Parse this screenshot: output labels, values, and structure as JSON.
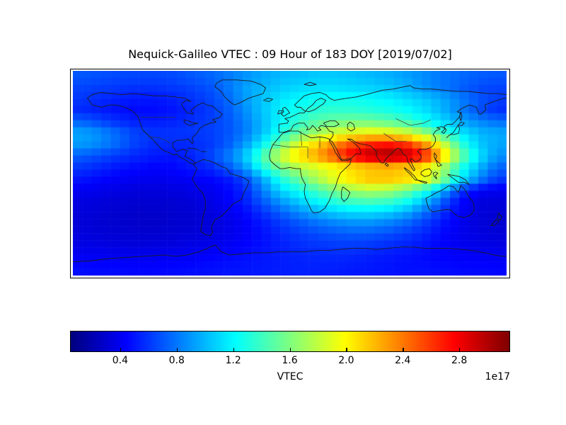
{
  "title": "Nequick-Galileo VTEC : 09 Hour of 183 DOY [2019/07/02]",
  "colorbar": {
    "label": "VTEC",
    "offset_text": "1e17",
    "ticks": [
      "0.4",
      "0.8",
      "1.2",
      "1.6",
      "2.0",
      "2.4",
      "2.8"
    ],
    "tick_values": [
      0.4,
      0.8,
      1.2,
      1.6,
      2.0,
      2.4,
      2.8
    ],
    "vmin": 0.05,
    "vmax": 3.15,
    "colormap": "jet",
    "orientation": "horizontal"
  },
  "chart_data": {
    "type": "heatmap",
    "title": "Nequick-Galileo VTEC : 09 Hour of 183 DOY [2019/07/02]",
    "colorbar_label": "VTEC",
    "scale_factor": "1e17",
    "colormap": "jet",
    "vmin": 0.05,
    "vmax": 3.15,
    "lon_range": [
      -180,
      180
    ],
    "lat_range": [
      -90,
      90
    ],
    "overlay": "world-coastlines-and-borders",
    "lon_centers": [
      -172.5,
      -157.5,
      -142.5,
      -127.5,
      -112.5,
      -97.5,
      -82.5,
      -67.5,
      -52.5,
      -37.5,
      -22.5,
      -7.5,
      7.5,
      22.5,
      37.5,
      52.5,
      67.5,
      82.5,
      97.5,
      112.5,
      127.5,
      142.5,
      157.5,
      172.5
    ],
    "lat_centers": [
      85,
      75,
      65,
      55,
      45,
      35,
      25,
      15,
      5,
      -5,
      -15,
      -25,
      -35,
      -45,
      -55,
      -65,
      -75,
      -85
    ],
    "values_unit": "1e17",
    "values": [
      [
        0.7,
        0.68,
        0.66,
        0.65,
        0.65,
        0.66,
        0.7,
        0.74,
        0.8,
        0.88,
        0.95,
        1.0,
        1.02,
        1.05,
        1.05,
        1.03,
        1.0,
        0.97,
        0.92,
        0.86,
        0.8,
        0.76,
        0.72,
        0.7
      ],
      [
        0.64,
        0.62,
        0.6,
        0.58,
        0.58,
        0.6,
        0.63,
        0.68,
        0.78,
        0.92,
        1.0,
        1.06,
        1.1,
        1.12,
        1.12,
        1.1,
        1.08,
        1.04,
        0.98,
        0.88,
        0.8,
        0.72,
        0.66,
        0.64
      ],
      [
        0.6,
        0.56,
        0.53,
        0.5,
        0.5,
        0.53,
        0.58,
        0.64,
        0.74,
        0.9,
        1.04,
        1.14,
        1.2,
        1.24,
        1.26,
        1.25,
        1.22,
        1.18,
        1.12,
        1.05,
        0.95,
        0.82,
        0.7,
        0.62
      ],
      [
        0.56,
        0.52,
        0.48,
        0.46,
        0.46,
        0.49,
        0.54,
        0.6,
        0.7,
        0.86,
        1.04,
        1.18,
        1.28,
        1.34,
        1.36,
        1.35,
        1.32,
        1.28,
        1.22,
        1.12,
        0.98,
        0.82,
        0.68,
        0.58
      ],
      [
        0.74,
        0.66,
        0.58,
        0.53,
        0.52,
        0.54,
        0.58,
        0.62,
        0.68,
        0.82,
        1.0,
        1.2,
        1.36,
        1.48,
        1.55,
        1.58,
        1.56,
        1.5,
        1.4,
        1.26,
        1.1,
        0.95,
        0.85,
        0.78
      ],
      [
        0.95,
        0.88,
        0.76,
        0.64,
        0.6,
        0.6,
        0.6,
        0.62,
        0.68,
        0.8,
        1.02,
        1.28,
        1.52,
        1.72,
        1.86,
        1.95,
        2.0,
        1.98,
        1.88,
        1.68,
        1.4,
        1.15,
        1.0,
        0.96
      ],
      [
        0.9,
        0.84,
        0.74,
        0.62,
        0.56,
        0.55,
        0.56,
        0.6,
        0.7,
        0.9,
        1.2,
        1.58,
        1.9,
        2.12,
        2.34,
        2.55,
        2.68,
        2.72,
        2.62,
        2.32,
        1.85,
        1.35,
        1.05,
        0.94
      ],
      [
        0.72,
        0.66,
        0.6,
        0.55,
        0.51,
        0.5,
        0.54,
        0.64,
        0.8,
        1.05,
        1.45,
        1.85,
        2.1,
        2.3,
        2.56,
        2.86,
        3.05,
        3.1,
        3.02,
        2.74,
        2.15,
        1.55,
        1.15,
        0.88
      ],
      [
        0.6,
        0.55,
        0.5,
        0.46,
        0.44,
        0.45,
        0.5,
        0.55,
        0.68,
        0.9,
        1.28,
        1.58,
        1.76,
        1.86,
        1.96,
        2.06,
        2.12,
        2.15,
        2.1,
        1.98,
        1.68,
        1.28,
        0.98,
        0.74
      ],
      [
        0.5,
        0.46,
        0.42,
        0.4,
        0.39,
        0.4,
        0.42,
        0.45,
        0.5,
        0.65,
        0.95,
        1.3,
        1.52,
        1.74,
        1.94,
        2.1,
        2.2,
        2.2,
        2.14,
        2.0,
        1.62,
        1.16,
        0.85,
        0.62
      ],
      [
        0.4,
        0.38,
        0.35,
        0.33,
        0.33,
        0.34,
        0.36,
        0.38,
        0.44,
        0.55,
        0.82,
        1.1,
        1.26,
        1.42,
        1.58,
        1.7,
        1.75,
        1.7,
        1.55,
        1.3,
        0.95,
        0.6,
        0.42,
        0.39
      ],
      [
        0.35,
        0.33,
        0.31,
        0.3,
        0.3,
        0.3,
        0.32,
        0.36,
        0.42,
        0.52,
        0.7,
        0.9,
        1.05,
        1.2,
        1.32,
        1.4,
        1.42,
        1.38,
        1.25,
        1.0,
        0.7,
        0.45,
        0.34,
        0.33
      ],
      [
        0.33,
        0.31,
        0.29,
        0.28,
        0.28,
        0.29,
        0.3,
        0.33,
        0.38,
        0.45,
        0.58,
        0.72,
        0.85,
        0.96,
        1.05,
        1.1,
        1.1,
        1.05,
        0.94,
        0.76,
        0.56,
        0.41,
        0.33,
        0.31
      ],
      [
        0.32,
        0.3,
        0.29,
        0.28,
        0.28,
        0.29,
        0.3,
        0.32,
        0.36,
        0.42,
        0.5,
        0.6,
        0.68,
        0.76,
        0.81,
        0.85,
        0.85,
        0.8,
        0.72,
        0.6,
        0.48,
        0.38,
        0.32,
        0.3
      ],
      [
        0.34,
        0.32,
        0.31,
        0.3,
        0.3,
        0.31,
        0.32,
        0.34,
        0.38,
        0.42,
        0.48,
        0.55,
        0.61,
        0.65,
        0.68,
        0.7,
        0.69,
        0.65,
        0.6,
        0.53,
        0.45,
        0.39,
        0.35,
        0.33
      ],
      [
        0.37,
        0.36,
        0.35,
        0.34,
        0.35,
        0.35,
        0.37,
        0.38,
        0.41,
        0.44,
        0.48,
        0.52,
        0.56,
        0.58,
        0.6,
        0.6,
        0.58,
        0.55,
        0.52,
        0.48,
        0.43,
        0.39,
        0.37,
        0.36
      ],
      [
        0.42,
        0.41,
        0.4,
        0.4,
        0.4,
        0.41,
        0.42,
        0.44,
        0.46,
        0.48,
        0.5,
        0.52,
        0.54,
        0.55,
        0.55,
        0.54,
        0.52,
        0.5,
        0.48,
        0.46,
        0.44,
        0.43,
        0.42,
        0.41
      ],
      [
        0.47,
        0.46,
        0.46,
        0.45,
        0.45,
        0.46,
        0.47,
        0.48,
        0.49,
        0.5,
        0.51,
        0.52,
        0.53,
        0.53,
        0.52,
        0.51,
        0.5,
        0.49,
        0.48,
        0.48,
        0.47,
        0.46,
        0.46,
        0.45
      ]
    ]
  }
}
